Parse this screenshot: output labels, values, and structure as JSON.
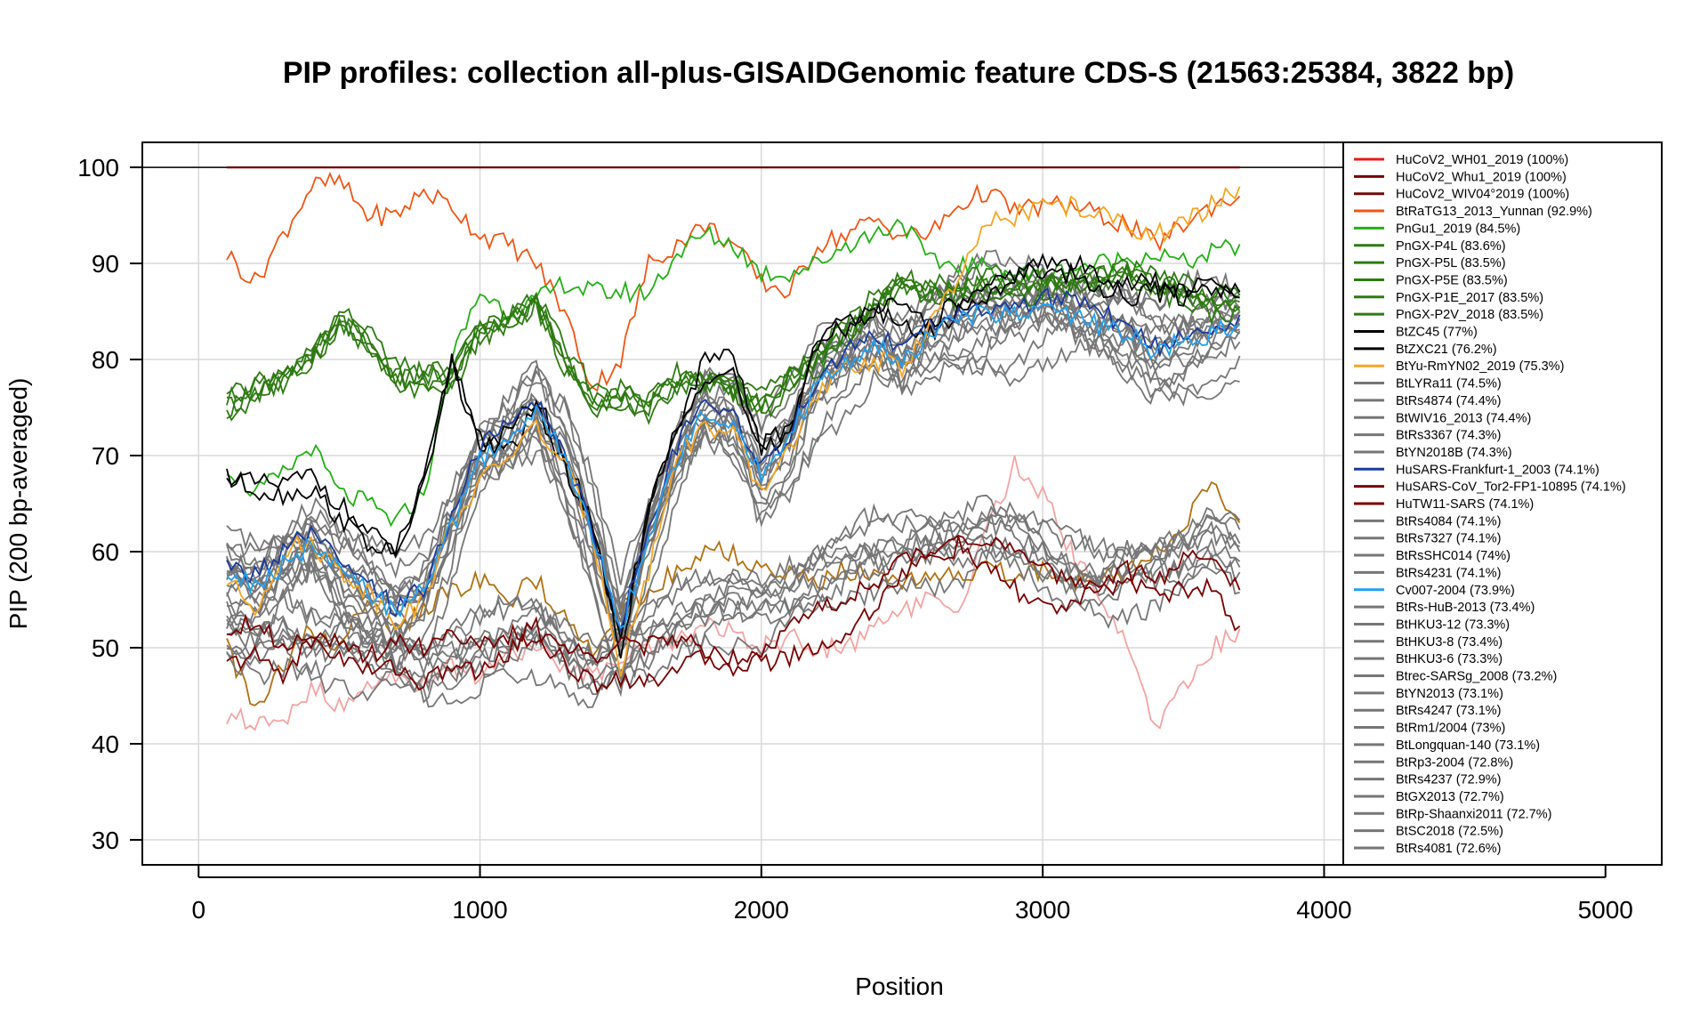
{
  "chart_data": {
    "type": "line",
    "title": "PIP profiles: collection all-plus-GISAIDGenomic feature CDS-S (21563:25384, 3822 bp)",
    "xlabel": "Position",
    "ylabel": "PIP (200 bp-averaged)",
    "xlim": [
      -200,
      5200
    ],
    "ylim": [
      27.4,
      102.6
    ],
    "x_ticks": [
      "0",
      "1000",
      "2000",
      "3000",
      "4000",
      "5000"
    ],
    "y_ticks": [
      "30",
      "40",
      "50",
      "60",
      "70",
      "80",
      "90",
      "100"
    ],
    "grid": true,
    "legend_position": "right inside plot",
    "x": [
      100,
      200,
      300,
      400,
      500,
      600,
      700,
      800,
      900,
      1000,
      1100,
      1200,
      1300,
      1400,
      1500,
      1600,
      1700,
      1800,
      1900,
      2000,
      2100,
      2200,
      2300,
      2400,
      2500,
      2600,
      2700,
      2800,
      2900,
      3000,
      3100,
      3200,
      3300,
      3400,
      3500,
      3600,
      3700
    ],
    "series": [
      {
        "name": "HuCoV2_WH01_2019 (100%)",
        "color": "#e8191b",
        "profile": "ref",
        "offset": 0
      },
      {
        "name": "HuCoV2_Whu1_2019 (100%)",
        "color": "#780000",
        "profile": "ref",
        "offset": 0
      },
      {
        "name": "HuCoV2_WIV04°2019 (100%)",
        "color": "#6e0a0a",
        "profile": "ref",
        "offset": 0
      },
      {
        "name": "BtRaTG13_2013_Yunnan (92.9%)",
        "color": "#f05515",
        "values": [
          91,
          88,
          93,
          98,
          98.5,
          95,
          95,
          97.5,
          96,
          93,
          92,
          90,
          85,
          77,
          80,
          90,
          92,
          94,
          92,
          88,
          87,
          92,
          93,
          94.5,
          93,
          93,
          96,
          97.5,
          95.5,
          96,
          96,
          95,
          94,
          92,
          94,
          96,
          97
        ]
      },
      {
        "name": "PnGu1_2019 (84.5%)",
        "color": "#22b014",
        "values": [
          69,
          66,
          68,
          71,
          66,
          65,
          63,
          66,
          80,
          87,
          85,
          86,
          88,
          87,
          87,
          87,
          91,
          93,
          92,
          89,
          89,
          90,
          92,
          93,
          94.5,
          90,
          90,
          89.5,
          89,
          88.5,
          89.5,
          90,
          90.5,
          91,
          90,
          91,
          92
        ]
      },
      {
        "name": "PnGX-P4L (83.6%)",
        "color": "#2e7a12",
        "values": [
          75,
          77,
          78,
          80,
          84,
          82,
          78,
          78,
          78,
          83,
          84,
          86,
          80,
          76,
          76,
          75,
          78,
          78,
          77,
          75,
          78,
          80,
          83,
          86,
          88,
          87,
          87,
          88,
          87,
          88,
          88,
          88.5,
          89,
          88,
          87,
          86,
          86
        ]
      },
      {
        "name": "PnGX-P5L (83.5%)",
        "color": "#2e7a12",
        "profile": "dup",
        "source": 5,
        "offset": -0.6
      },
      {
        "name": "PnGX-P5E (83.5%)",
        "color": "#2e7a12",
        "profile": "dup",
        "source": 5,
        "offset": 0.7
      },
      {
        "name": "PnGX-P1E_2017 (83.5%)",
        "color": "#2e7a12",
        "profile": "dup",
        "source": 5,
        "offset": -1.2
      },
      {
        "name": "PnGX-P2V_2018 (83.5%)",
        "color": "#2e7a12",
        "profile": "dup",
        "source": 5,
        "offset": 1.2
      },
      {
        "name": "BtZC45 (77%)",
        "color": "#000000",
        "values": [
          68,
          67,
          67,
          68,
          65,
          62,
          60,
          67,
          80,
          72,
          72,
          76,
          70,
          63,
          50,
          65,
          73,
          80,
          80,
          71,
          73,
          82,
          84,
          86,
          85,
          84,
          86,
          87,
          89,
          90,
          90,
          89,
          88,
          88,
          87,
          88,
          87
        ]
      },
      {
        "name": "BtZXC21 (76.2%)",
        "color": "#000000",
        "profile": "dup",
        "source": 10,
        "offset": -1.5
      },
      {
        "name": "BtYu-RmYN02_2019 (75.3%)",
        "color": "#f5a623",
        "values": [
          57,
          54,
          60,
          61,
          58,
          56,
          53,
          55,
          63,
          67,
          70,
          73,
          69,
          62,
          48,
          58,
          70,
          73,
          72,
          66,
          71,
          76,
          79,
          80,
          79,
          84,
          88,
          94,
          95,
          96,
          96,
          95,
          94,
          93,
          94,
          96,
          98
        ]
      },
      {
        "name": "BtLYRa11 (74.5%)",
        "color": "#767676",
        "values": [
          58,
          57,
          59,
          61,
          58,
          56,
          54,
          56,
          63,
          70,
          72,
          75,
          70,
          62,
          52,
          62,
          70,
          75,
          74,
          68,
          72,
          78,
          80,
          82,
          80,
          83,
          84,
          85,
          85,
          86,
          85,
          84,
          83,
          81,
          82,
          83,
          84
        ]
      },
      {
        "name": "BtRs4874 (74.4%)",
        "color": "#767676",
        "profile": "dup",
        "source": 13,
        "offset": -2.5
      },
      {
        "name": "BtWIV16_2013 (74.4%)",
        "color": "#767676",
        "profile": "dup",
        "source": 13,
        "offset": 2
      },
      {
        "name": "BtRs3367 (74.3%)",
        "color": "#767676",
        "profile": "dup",
        "source": 13,
        "offset": -4
      },
      {
        "name": "BtYN2018B (74.3%)",
        "color": "#767676",
        "profile": "dup",
        "source": 13,
        "offset": 3.5
      },
      {
        "name": "HuSARS-Frankfurt-1_2003 (74.1%)",
        "color": "#1b3a9c",
        "profile": "dup",
        "source": 13,
        "offset": 1
      },
      {
        "name": "HuSARS-CoV_Tor2-FP1-10895 (74.1%)",
        "color": "#780000",
        "values": [
          52,
          53,
          50,
          52,
          50,
          49,
          51,
          50,
          52,
          50,
          51,
          52,
          50,
          49,
          51,
          50,
          51,
          50,
          49,
          50,
          52,
          54,
          55,
          57,
          59,
          60,
          62,
          61,
          60,
          58,
          57,
          57,
          58,
          57,
          59,
          60,
          56
        ]
      },
      {
        "name": "HuTW11-SARS (74.1%)",
        "color": "#780000",
        "profile": "dup",
        "source": 19,
        "offset": -4
      },
      {
        "name": "BtRs4084 (74.1%)",
        "color": "#767676",
        "profile": "dup",
        "source": 13,
        "offset": -6
      },
      {
        "name": "BtRs7327 (74.1%)",
        "color": "#767676",
        "profile": "dup",
        "source": 13,
        "offset": 5
      },
      {
        "name": "BtRsSHC014 (74%)",
        "color": "#767676",
        "profile": "dup",
        "source": 13,
        "offset": -1
      },
      {
        "name": "BtRs4231 (74.1%)",
        "color": "#767676",
        "profile": "dup",
        "source": 13,
        "offset": 0.5
      },
      {
        "name": "Cv007-2004 (73.9%)",
        "color": "#22a0f0",
        "profile": "dup",
        "source": 13,
        "offset": -0.5
      },
      {
        "name": "BtRs-HuB-2013 (73.4%)",
        "color": "#767676",
        "values": [
          52,
          51,
          52,
          50,
          51,
          50,
          50,
          48,
          49,
          50,
          51,
          52,
          50,
          48,
          50,
          51,
          53,
          54,
          55,
          55,
          56,
          58,
          59,
          60,
          60,
          61,
          61,
          63,
          62,
          60,
          58,
          57,
          58,
          59,
          60,
          62,
          60
        ]
      },
      {
        "name": "BtHKU3-12 (73.3%)",
        "color": "#767676",
        "profile": "dup",
        "source": 26,
        "offset": -3
      },
      {
        "name": "BtHKU3-8 (73.4%)",
        "color": "#767676",
        "profile": "dup",
        "source": 26,
        "offset": 2.5
      },
      {
        "name": "BtHKU3-6 (73.3%)",
        "color": "#767676",
        "profile": "dup",
        "source": 26,
        "offset": -5
      },
      {
        "name": "Btrec-SARSg_2008 (73.2%)",
        "color": "#767676",
        "profile": "dup",
        "source": 13,
        "offset": -3
      },
      {
        "name": "BtYN2013 (73.1%)",
        "color": "#767676",
        "profile": "dup",
        "source": 26,
        "offset": 4
      },
      {
        "name": "BtRs4247 (73.1%)",
        "color": "#767676",
        "profile": "dup",
        "source": 13,
        "offset": 2.8
      },
      {
        "name": "BtRm1/2004 (73%)",
        "color": "#767676",
        "profile": "dup",
        "source": 26,
        "offset": -2
      },
      {
        "name": "BtLongquan-140 (73.1%)",
        "color": "#767676",
        "profile": "dup",
        "source": 26,
        "offset": 1.2
      },
      {
        "name": "BtRp3-2004 (72.8%)",
        "color": "#767676",
        "profile": "dup",
        "source": 13,
        "offset": -5
      },
      {
        "name": "BtRs4237 (72.9%)",
        "color": "#767676",
        "profile": "dup",
        "source": 13,
        "offset": 4.2
      },
      {
        "name": "BtGX2013 (72.7%)",
        "color": "#767676",
        "profile": "dup",
        "source": 26,
        "offset": 3.2
      },
      {
        "name": "BtRp-Shaanxi2011 (72.7%)",
        "color": "#767676",
        "profile": "dup",
        "source": 26,
        "offset": -4.3
      },
      {
        "name": "BtSC2018 (72.5%)",
        "color": "#767676",
        "profile": "dup",
        "source": 13,
        "offset": -7
      },
      {
        "name": "BtRs4081 (72.6%)",
        "color": "#767676",
        "profile": "dup",
        "source": 13,
        "offset": 6
      }
    ],
    "extra_lines": [
      {
        "color": "#f5a3a3",
        "values": [
          43,
          42,
          42,
          46,
          44,
          46,
          47,
          46,
          48,
          47,
          49,
          50,
          48,
          47,
          49,
          50,
          51,
          52,
          52,
          50,
          51,
          50,
          50,
          52,
          54,
          55,
          54,
          62,
          69,
          66,
          60,
          56,
          50,
          42,
          46,
          50,
          52
        ]
      },
      {
        "color": "#b07010",
        "values": [
          50,
          44,
          48,
          52,
          50,
          55,
          52,
          54,
          56,
          57,
          55,
          57,
          53,
          50,
          54,
          56,
          58,
          60,
          60,
          58,
          58,
          57,
          58,
          58,
          57,
          58,
          58,
          58,
          58,
          58,
          57,
          57,
          58,
          60,
          63,
          67,
          63
        ]
      }
    ]
  }
}
